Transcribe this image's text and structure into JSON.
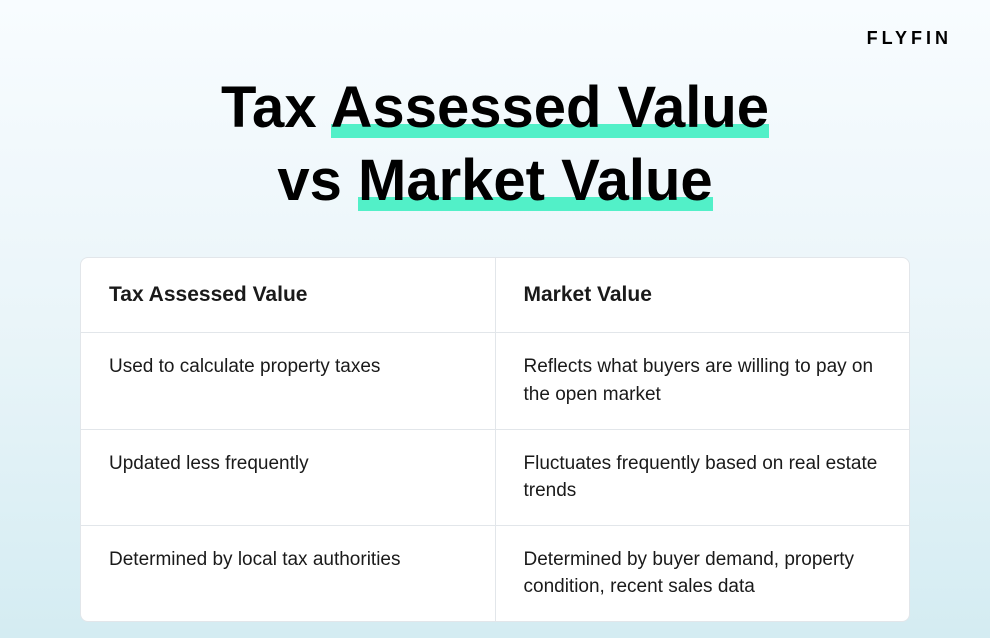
{
  "brand": "FLYFIN",
  "title": {
    "line1_plain": "Tax ",
    "line1_hl": "Assessed Value",
    "line2_plain": "vs ",
    "line2_hl": "Market Value"
  },
  "colors": {
    "highlight": "#52f0c8",
    "bg_top": "#f8fcff",
    "bg_bottom": "#d4ecf2",
    "border": "#e2e6ea",
    "text": "#1a1a1a",
    "table_bg": "#ffffff"
  },
  "table": {
    "columns": [
      "Tax Assessed Value",
      "Market Value"
    ],
    "rows": [
      [
        "Used to calculate property taxes",
        "Reflects what buyers are willing to pay on the open market"
      ],
      [
        "Updated less frequently",
        "Fluctuates frequently based on real estate trends"
      ],
      [
        "Determined by local tax authorities",
        "Determined by buyer demand, property condition, recent sales data"
      ]
    ]
  }
}
